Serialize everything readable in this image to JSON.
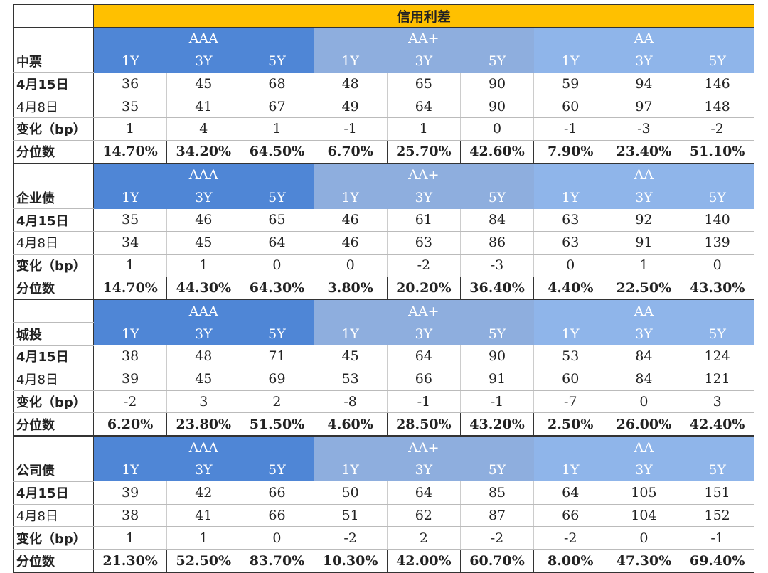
{
  "title": "信用利差",
  "grades": [
    "AAA",
    "AA+",
    "AA"
  ],
  "tenors": [
    "1Y",
    "3Y",
    "5Y"
  ],
  "row_labels": {
    "current": "4月15日",
    "previous": "4月8日",
    "change": "变化（bp）",
    "percentile": "分位数"
  },
  "colors": {
    "title_bg": "#ffc000",
    "aaa_bg": "#4f86d6",
    "aa_plus_bg": "#8eaede",
    "aa_bg": "#8fb5ea"
  },
  "sections": [
    {
      "name": "中票",
      "current": [
        36,
        45,
        68,
        48,
        65,
        90,
        59,
        94,
        146
      ],
      "previous": [
        35,
        41,
        67,
        49,
        64,
        90,
        60,
        97,
        148
      ],
      "change": [
        1,
        4,
        1,
        -1,
        1,
        0,
        -1,
        -3,
        -2
      ],
      "percentile": [
        "14.70%",
        "34.20%",
        "64.50%",
        "6.70%",
        "25.70%",
        "42.60%",
        "7.90%",
        "23.40%",
        "51.10%"
      ]
    },
    {
      "name": "企业债",
      "current": [
        35,
        46,
        65,
        46,
        61,
        84,
        63,
        92,
        140
      ],
      "previous": [
        34,
        45,
        64,
        46,
        63,
        86,
        63,
        91,
        139
      ],
      "change": [
        1,
        1,
        0,
        0,
        -2,
        -3,
        0,
        1,
        0
      ],
      "percentile": [
        "14.70%",
        "44.30%",
        "64.30%",
        "3.80%",
        "20.20%",
        "36.40%",
        "4.40%",
        "22.50%",
        "43.30%"
      ]
    },
    {
      "name": "城投",
      "current": [
        38,
        48,
        71,
        45,
        64,
        90,
        53,
        84,
        124
      ],
      "previous": [
        39,
        45,
        69,
        53,
        66,
        91,
        60,
        84,
        121
      ],
      "change": [
        -2,
        3,
        2,
        -8,
        -1,
        -1,
        -7,
        0,
        3
      ],
      "percentile": [
        "6.20%",
        "23.80%",
        "51.50%",
        "4.60%",
        "28.50%",
        "43.20%",
        "2.50%",
        "26.00%",
        "42.40%"
      ]
    },
    {
      "name": "公司债",
      "current": [
        39,
        42,
        66,
        50,
        64,
        85,
        64,
        105,
        151
      ],
      "previous": [
        38,
        41,
        66,
        51,
        62,
        87,
        66,
        104,
        152
      ],
      "change": [
        1,
        1,
        0,
        -2,
        2,
        -2,
        -2,
        0,
        -1
      ],
      "percentile": [
        "21.30%",
        "52.50%",
        "83.70%",
        "10.30%",
        "42.00%",
        "60.70%",
        "8.00%",
        "47.30%",
        "69.40%"
      ]
    }
  ]
}
